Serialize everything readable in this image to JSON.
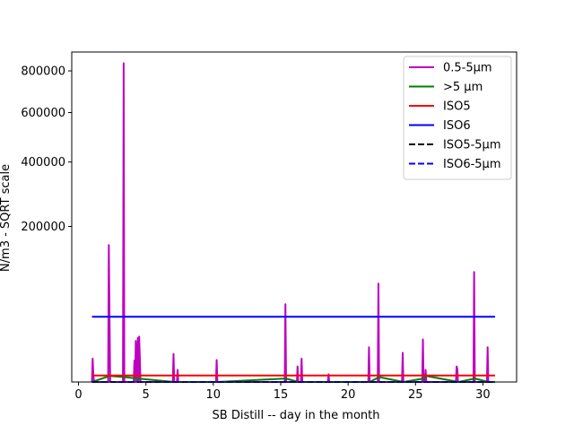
{
  "chart_data": {
    "type": "line",
    "title": "",
    "xlabel": "SB Distill -- day in the month",
    "ylabel": "N/m3 - SQRT scale",
    "y_scale": "sqrt",
    "xlim": [
      -0.5,
      32.5
    ],
    "ylim": [
      0,
      900000
    ],
    "xticks": [
      0,
      5,
      10,
      15,
      20,
      25,
      30
    ],
    "xtick_labels": [
      "0",
      "5",
      "10",
      "15",
      "20",
      "25",
      "30"
    ],
    "yticks": [
      200000,
      400000,
      600000,
      800000
    ],
    "ytick_labels": [
      "200000",
      "400000",
      "600000",
      "800000"
    ],
    "grid": false,
    "legend_position": "top-right",
    "series": [
      {
        "name": "0.5-5µm",
        "color": "#bf00bf",
        "style": "solid",
        "x": [
          1,
          1.05,
          1.1,
          1.15,
          1.2,
          2.2,
          2.25,
          2.3,
          2.35,
          2.4,
          3.3,
          3.35,
          3.4,
          4.1,
          4.15,
          4.2,
          4.25,
          4.35,
          4.4,
          4.45,
          4.5,
          4.55,
          4.6,
          4.65,
          7.0,
          7.05,
          7.1,
          7.3,
          7.35,
          7.4,
          10.2,
          10.25,
          10.3,
          15.3,
          15.35,
          15.4,
          16.2,
          16.25,
          16.3,
          16.5,
          16.55,
          16.6,
          18.5,
          18.55,
          18.6,
          21.5,
          21.55,
          21.6,
          22.2,
          22.25,
          22.3,
          24.0,
          24.05,
          24.1,
          25.5,
          25.55,
          25.6,
          25.7,
          25.75,
          25.8,
          28.0,
          28.05,
          28.1,
          28.15,
          28.2,
          29.3,
          29.35,
          29.4,
          30.3,
          30.35,
          30.4
        ],
        "y": [
          0,
          4500,
          500,
          0,
          0,
          0,
          155000,
          40000,
          0,
          0,
          0,
          840000,
          0,
          0,
          3800,
          0,
          14000,
          0,
          16000,
          0,
          17000,
          5000,
          0,
          0,
          0,
          6500,
          0,
          0,
          1200,
          0,
          0,
          4000,
          0,
          0,
          50000,
          0,
          0,
          2000,
          0,
          0,
          4500,
          0,
          0,
          500,
          0,
          0,
          10000,
          0,
          0,
          80000,
          0,
          0,
          7000,
          0,
          0,
          15000,
          0,
          0,
          1200,
          0,
          0,
          2000,
          1500,
          0,
          0,
          0,
          100000,
          0,
          0,
          10000,
          0
        ]
      },
      {
        "name": ">5 µm",
        "color": "#008000",
        "style": "solid",
        "x": [
          1,
          2.3,
          3.4,
          4.4,
          7.1,
          10.3,
          15.4,
          16.3,
          16.6,
          18.6,
          21.6,
          22.3,
          24.1,
          25.6,
          25.8,
          28.2,
          29.4,
          30.4,
          30.9
        ],
        "y": [
          0,
          300,
          200,
          100,
          0,
          0,
          100,
          0,
          0,
          0,
          0,
          200,
          0,
          100,
          300,
          0,
          100,
          0,
          0
        ]
      },
      {
        "name": "ISO5",
        "color": "#ff0000",
        "style": "solid",
        "x": [
          1,
          30.9
        ],
        "y": [
          352,
          352
        ]
      },
      {
        "name": "ISO6",
        "color": "#0000ff",
        "style": "solid",
        "x": [
          1,
          30.9
        ],
        "y": [
          35200,
          35200
        ]
      },
      {
        "name": "ISO5-5µm",
        "color": "#000000",
        "style": "dashed",
        "x": [
          1,
          30.9
        ],
        "y": [
          0,
          0
        ]
      },
      {
        "name": "ISO6-5µm",
        "color": "#0000ff",
        "style": "dashed",
        "x": [
          1,
          30.9
        ],
        "y": [
          0,
          0
        ]
      }
    ]
  }
}
